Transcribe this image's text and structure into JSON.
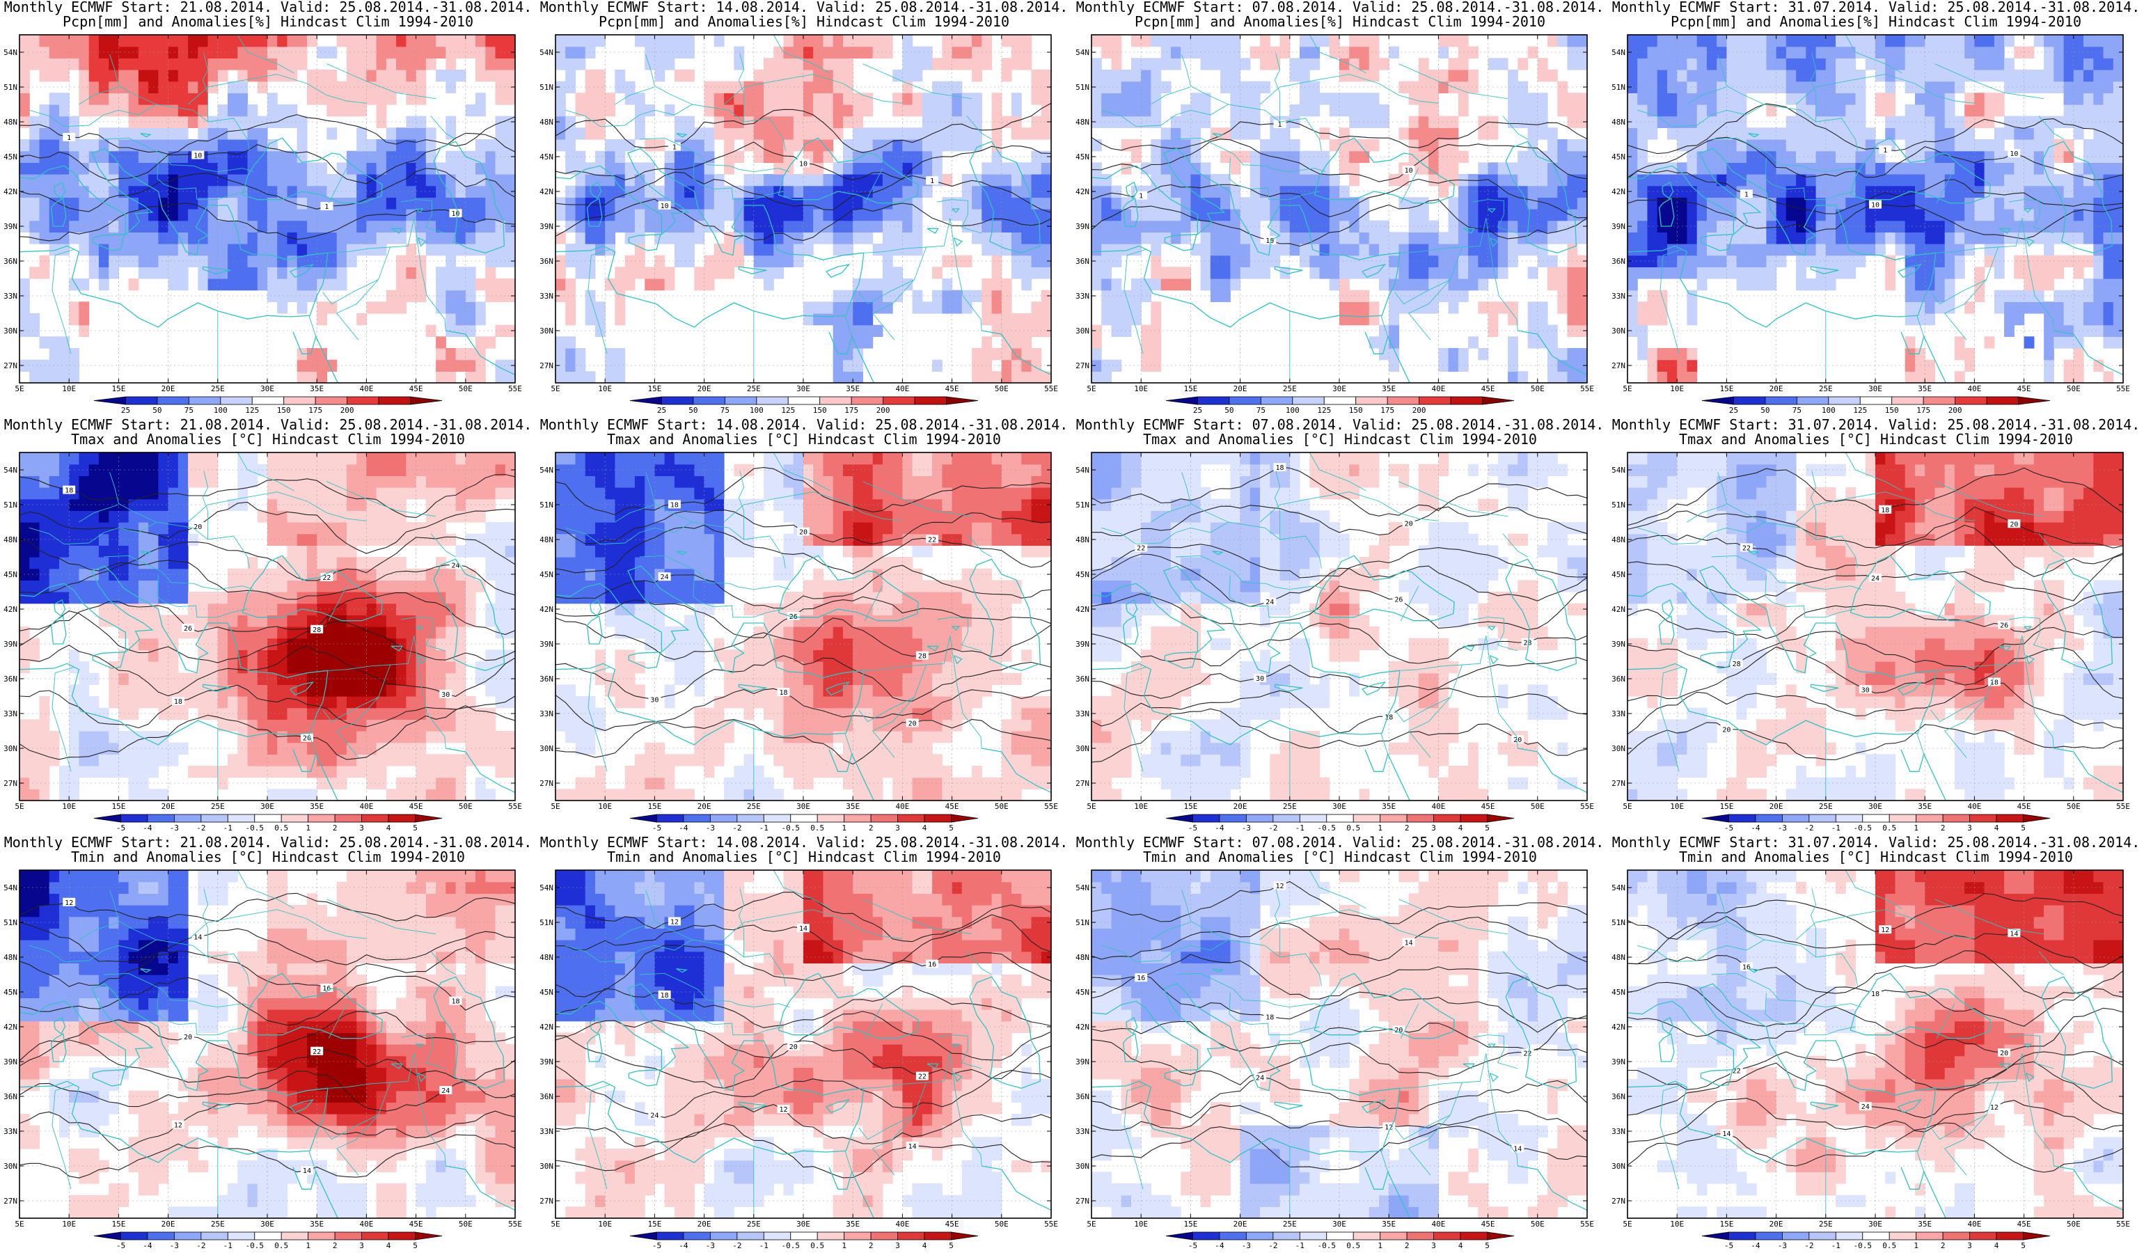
{
  "rows": [
    {
      "variable": "Pcpn[mm] and Anomalies[%] Hindcast Clim 1994-2010",
      "kind": "precip",
      "colorbar": [
        "25",
        "50",
        "75",
        "100",
        "125",
        "150",
        "175",
        "200"
      ],
      "contours": [
        "1",
        "10"
      ]
    },
    {
      "variable": "Tmax and Anomalies [°C] Hindcast Clim 1994-2010",
      "kind": "temp",
      "colorbar": [
        "-5",
        "-4",
        "-3",
        "-2",
        "-1",
        "-0.5",
        "0.5",
        "1",
        "2",
        "3",
        "4",
        "5"
      ],
      "contours": [
        "18",
        "20",
        "22",
        "24",
        "26",
        "28",
        "30"
      ]
    },
    {
      "variable": "Tmin and Anomalies [°C] Hindcast Clim 1994-2010",
      "kind": "temp",
      "colorbar": [
        "-5",
        "-4",
        "-3",
        "-2",
        "-1",
        "-0.5",
        "0.5",
        "1",
        "2",
        "3",
        "4",
        "5"
      ],
      "contours": [
        "12",
        "14",
        "16",
        "18",
        "20",
        "22",
        "24"
      ]
    }
  ],
  "columns": [
    {
      "header": "Monthly ECMWF Start: 21.08.2014. Valid: 25.08.2014.-31.08.2014."
    },
    {
      "header": "Monthly ECMWF Start: 14.08.2014. Valid: 25.08.2014.-31.08.2014."
    },
    {
      "header": "Monthly ECMWF Start: 07.08.2014. Valid: 25.08.2014.-31.08.2014."
    },
    {
      "header": "Monthly ECMWF Start: 31.07.2014. Valid: 25.08.2014.-31.08.2014."
    }
  ],
  "lon_ticks": [
    "5E",
    "10E",
    "15E",
    "20E",
    "25E",
    "30E",
    "35E",
    "40E",
    "45E",
    "50E",
    "55E"
  ],
  "lat_ticks": [
    "54N",
    "51N",
    "48N",
    "45N",
    "42N",
    "39N",
    "36N",
    "33N",
    "30N",
    "27N"
  ],
  "colors": {
    "precip": [
      "#06068f",
      "#1f2fd6",
      "#4d6ff0",
      "#8ea6f8",
      "#c5d2fb",
      "#ffffff",
      "#fbc9c9",
      "#f58a8a",
      "#e83a3a",
      "#c41010",
      "#8c0000"
    ],
    "temp": [
      "#06068f",
      "#1f2fd6",
      "#4d6ff0",
      "#8ea6f8",
      "#b7c6fa",
      "#dde4fd",
      "#ffffff",
      "#fcd3d3",
      "#f8a6a6",
      "#f07272",
      "#e03838",
      "#c81414",
      "#9c0000"
    ],
    "coast": "#2fc4c4",
    "contour": "#222222"
  }
}
